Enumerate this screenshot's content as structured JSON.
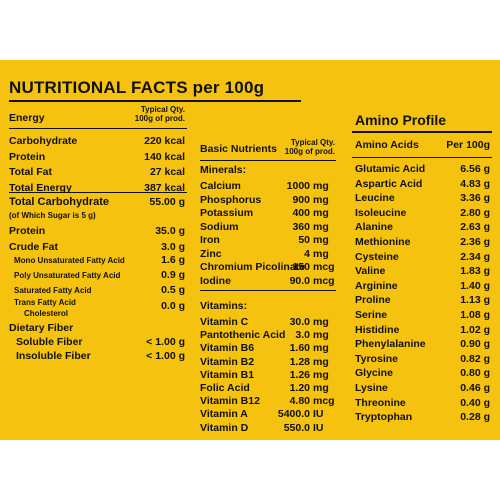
{
  "title": "NUTRITIONAL FACTS per 100g",
  "energy_section": {
    "header_label": "Energy",
    "header_qty": "Typical Qty.",
    "header_qty2": "100g of prod.",
    "rows": [
      {
        "label": "Carbohydrate",
        "value": "220 kcal"
      },
      {
        "label": "Protein",
        "value": "140 kcal"
      },
      {
        "label": "Total Fat",
        "value": "27 kcal"
      },
      {
        "label": "Total Energy",
        "value": "387 kcal"
      }
    ]
  },
  "macros": {
    "carb_label": "Total Carbohydrate",
    "carb_value": "55.00 g",
    "sugar_note": "(of Which Sugar is 5 g)",
    "protein_label": "Protein",
    "protein_value": "35.0 g",
    "fat_label": "Crude Fat",
    "fat_value": "3.0 g",
    "fats": [
      {
        "label": "Mono Unsaturated Fatty Acid",
        "value": "1.6 g"
      },
      {
        "label": "Poly Unsaturated Fatty Acid",
        "value": "0.9 g"
      },
      {
        "label": "Saturated Fatty Acid",
        "value": "0.5 g"
      }
    ],
    "trans_label1": "Trans Fatty Acid",
    "trans_label2": "Cholesterol",
    "trans_value": "0.0 g",
    "fiber_label": "Dietary Fiber",
    "fibers": [
      {
        "label": "Soluble Fiber",
        "value": "< 1.00 g"
      },
      {
        "label": "Insoluble Fiber",
        "value": "< 1.00 g"
      }
    ]
  },
  "basic": {
    "header_label": "Basic Nutrients",
    "header_qty": "Typical Qty.",
    "header_qty2": "100g of prod.",
    "minerals_label": "Minerals:",
    "minerals": [
      {
        "label": "Calcium",
        "value": "1000",
        "unit": "mg"
      },
      {
        "label": "Phosphorus",
        "value": "900",
        "unit": "mg"
      },
      {
        "label": "Potassium",
        "value": "400",
        "unit": "mg"
      },
      {
        "label": "Sodium",
        "value": "360",
        "unit": "mg"
      },
      {
        "label": "Iron",
        "value": "50",
        "unit": "mg"
      },
      {
        "label": "Zinc",
        "value": "4",
        "unit": "mg"
      },
      {
        "label": "Chromium Picolinate",
        "value": "150",
        "unit": "mcg"
      },
      {
        "label": "Iodine",
        "value": "90.0",
        "unit": "mcg"
      }
    ],
    "vitamins_label": "Vitamins:",
    "vitamins": [
      {
        "label": "Vitamin C",
        "value": "30.0",
        "unit": "mg"
      },
      {
        "label": "Pantothenic Acid",
        "value": "3.0",
        "unit": "mg"
      },
      {
        "label": "Vitamin B6",
        "value": "1.60",
        "unit": "mg"
      },
      {
        "label": "Vitamin B2",
        "value": "1.28",
        "unit": "mg"
      },
      {
        "label": "Vitamin B1",
        "value": "1.26",
        "unit": "mg"
      },
      {
        "label": "Folic Acid",
        "value": "1.20",
        "unit": "mg"
      },
      {
        "label": "Vitamin B12",
        "value": "4.80",
        "unit": "mcg"
      },
      {
        "label": "Vitamin A",
        "value": "5400.0",
        "unit": "IU"
      },
      {
        "label": "Vitamin D",
        "value": "550.0",
        "unit": "IU"
      }
    ]
  },
  "amino": {
    "title": "Amino Profile",
    "col1": "Amino Acids",
    "col2": "Per 100g",
    "rows": [
      {
        "label": "Glutamic Acid",
        "value": "6.56 g"
      },
      {
        "label": "Aspartic Acid",
        "value": "4.83 g"
      },
      {
        "label": "Leucine",
        "value": "3.36 g"
      },
      {
        "label": "Isoleucine",
        "value": "2.80 g"
      },
      {
        "label": "Alanine",
        "value": "2.63 g"
      },
      {
        "label": "Methionine",
        "value": "2.36 g"
      },
      {
        "label": "Cysteine",
        "value": "2.34 g"
      },
      {
        "label": "Valine",
        "value": "1.83 g"
      },
      {
        "label": "Arginine",
        "value": "1.40 g"
      },
      {
        "label": "Proline",
        "value": "1.13 g"
      },
      {
        "label": "Serine",
        "value": "1.08 g"
      },
      {
        "label": "Histidine",
        "value": "1.02 g"
      },
      {
        "label": "Phenylalanine",
        "value": "0.90 g"
      },
      {
        "label": "Tyrosine",
        "value": "0.82 g"
      },
      {
        "label": "Glycine",
        "value": "0.80 g"
      },
      {
        "label": "Lysine",
        "value": "0.46 g"
      },
      {
        "label": "Threonine",
        "value": "0.40 g"
      },
      {
        "label": "Tryptophan",
        "value": "0.28 g"
      }
    ]
  },
  "colors": {
    "panel": "#f5c20f",
    "text": "#111111"
  }
}
